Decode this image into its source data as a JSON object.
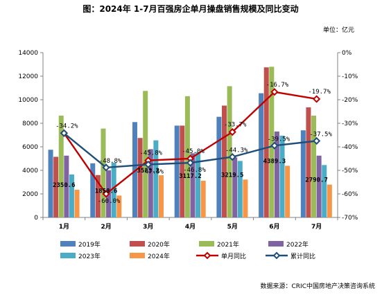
{
  "chart_data": {
    "type": "bar",
    "title": "图：2024年 1-7月百强房企单月操盘销售规模及同比变动",
    "unit_label": "单位：亿元",
    "source": "数据来源：CRIC中国房地产决策咨询系统",
    "categories": [
      "1月",
      "2月",
      "3月",
      "4月",
      "5月",
      "6月",
      "7月"
    ],
    "ylim": [
      0,
      14000
    ],
    "y_ticks": [
      0,
      2000,
      4000,
      6000,
      8000,
      10000,
      12000,
      14000
    ],
    "y2lim": [
      -70,
      0
    ],
    "y2_ticks": [
      0,
      -10,
      -20,
      -30,
      -40,
      -50,
      -60,
      -70
    ],
    "y2_tick_labels": [
      "0%",
      "-10%",
      "-20%",
      "-30%",
      "-40%",
      "-50%",
      "-60%",
      "-70%"
    ],
    "series": [
      {
        "name": "2019年",
        "color": "#4f81bd",
        "values": [
          5750,
          4600,
          8100,
          7800,
          8550,
          10550,
          7400
        ]
      },
      {
        "name": "2020年",
        "color": "#c0504d",
        "values": [
          5150,
          3600,
          6750,
          7800,
          9500,
          12750,
          9350
        ]
      },
      {
        "name": "2021年",
        "color": "#9bbb59",
        "values": [
          8650,
          7550,
          10750,
          10300,
          11150,
          12800,
          8650
        ]
      },
      {
        "name": "2022年",
        "color": "#8064a2",
        "values": [
          5250,
          4000,
          5800,
          5450,
          5100,
          7300,
          5250
        ]
      },
      {
        "name": "2023年",
        "color": "#4bacc6",
        "values": [
          3650,
          4650,
          6550,
          5550,
          4800,
          6950,
          4450
        ]
      },
      {
        "name": "2024年",
        "color": "#f79646",
        "values": [
          2350.6,
          1858.6,
          3583.2,
          3117.2,
          3219.5,
          4389.3,
          2790.7
        ]
      }
    ],
    "line_series": [
      {
        "name": "单月同比",
        "color": "#c00000",
        "marker": "diamond-hollow",
        "values": [
          -34.2,
          -60.0,
          -45.8,
          -45.0,
          -33.7,
          -16.7,
          -19.7
        ]
      },
      {
        "name": "累计同比",
        "color": "#1f4e79",
        "marker": "diamond-hollow",
        "values": [
          -34.2,
          -48.8,
          -47.5,
          -46.8,
          -44.3,
          -39.5,
          -37.5
        ]
      }
    ],
    "bar_labels": [
      "2350.6",
      "1858.6",
      "3583.2",
      "3117.2",
      "3219.5",
      "4389.3",
      "2790.7"
    ],
    "line1_labels": [
      "-34.2%",
      "-60.0%",
      "-45.8%",
      "-45.0%",
      "-33.7%",
      "-16.7%",
      "-19.7%"
    ],
    "line2_labels": [
      "",
      "-48.8%",
      "-47.5%",
      "-46.8%",
      "-44.3%",
      "-39.5%",
      "-37.5%"
    ],
    "grid": false,
    "legend_position": "bottom"
  }
}
